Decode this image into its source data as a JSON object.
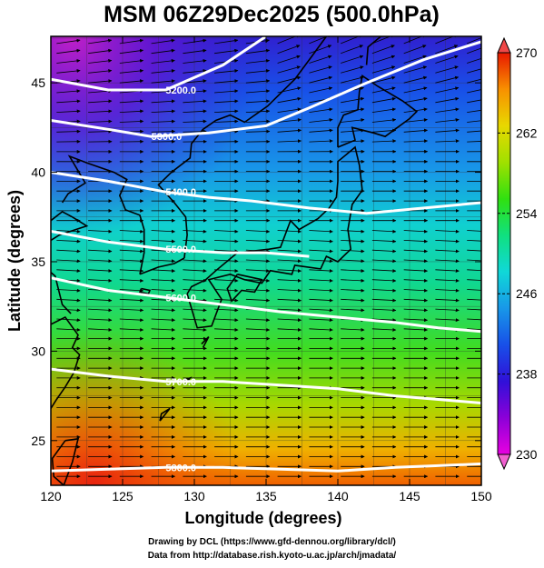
{
  "chart_data": {
    "type": "heatmap",
    "title": "MSM 06Z29Dec2025 (500.0hPa)",
    "xlabel": "Longitude (degrees)",
    "ylabel": "Latitude (degrees)",
    "xlim": [
      120,
      150
    ],
    "ylim": [
      22.5,
      47.6
    ],
    "x_ticks": [
      120,
      125,
      130,
      135,
      140,
      145,
      150
    ],
    "x_tick_labels": [
      "120",
      "125",
      "130",
      "135",
      "140",
      "145",
      "150"
    ],
    "y_ticks": [
      25,
      30,
      35,
      40,
      45
    ],
    "y_tick_labels": [
      "25",
      "30",
      "35",
      "40",
      "45"
    ],
    "grid": true,
    "colorbar": {
      "min": 230,
      "max": 270,
      "ticks": [
        230,
        238,
        246,
        254,
        262,
        270
      ],
      "tick_labels": [
        "230",
        "238",
        "246",
        "254",
        "262",
        "270"
      ],
      "colors": [
        "#e800e0",
        "#8c00d8",
        "#3010d8",
        "#1850e8",
        "#1898e8",
        "#10d8d8",
        "#10e080",
        "#30e010",
        "#a0e000",
        "#e8d800",
        "#f89000",
        "#e81800"
      ]
    },
    "field_colors": {
      "cold": "#c020c8",
      "mid": "#10d8c8",
      "warm": "#e82010"
    },
    "contours": [
      {
        "level": 5200,
        "label": "5200.0",
        "points": [
          [
            120,
            45.2
          ],
          [
            124,
            44.6
          ],
          [
            128,
            44.6
          ],
          [
            132,
            46.0
          ],
          [
            135,
            47.6
          ]
        ]
      },
      {
        "level": 5300,
        "label": "5300.0",
        "points": [
          [
            120,
            42.9
          ],
          [
            124,
            42.4
          ],
          [
            127,
            42.0
          ],
          [
            131,
            42.2
          ],
          [
            135,
            42.6
          ],
          [
            138,
            43.6
          ],
          [
            142,
            45.0
          ],
          [
            146,
            46.3
          ],
          [
            150,
            47.3
          ]
        ]
      },
      {
        "level": 5400,
        "label": "5400.0",
        "points": [
          [
            120,
            40.0
          ],
          [
            124,
            39.5
          ],
          [
            128,
            38.9
          ],
          [
            131,
            38.6
          ],
          [
            134,
            38.4
          ],
          [
            138,
            38.0
          ],
          [
            142,
            37.7
          ],
          [
            146,
            38.0
          ],
          [
            150,
            38.3
          ]
        ]
      },
      {
        "level": 5500,
        "label": "5500.0",
        "points": [
          [
            120,
            36.7
          ],
          [
            124,
            36.1
          ],
          [
            128,
            35.7
          ],
          [
            132,
            35.5
          ],
          [
            135,
            35.5
          ],
          [
            138,
            35.3
          ]
        ]
      },
      {
        "level": 5600,
        "label": "5600.0",
        "points": [
          [
            120,
            34.1
          ],
          [
            124,
            33.4
          ],
          [
            128,
            33.0
          ],
          [
            132,
            32.6
          ],
          [
            136,
            32.2
          ],
          [
            140,
            31.9
          ],
          [
            144,
            31.6
          ],
          [
            147,
            31.3
          ],
          [
            150,
            31.1
          ]
        ]
      },
      {
        "level": 5700,
        "label": "5700.0",
        "points": [
          [
            120,
            29.0
          ],
          [
            124,
            28.6
          ],
          [
            128,
            28.3
          ],
          [
            132,
            28.3
          ],
          [
            136,
            28.1
          ],
          [
            140,
            27.9
          ],
          [
            144,
            27.5
          ],
          [
            147,
            27.3
          ],
          [
            150,
            27.1
          ]
        ]
      },
      {
        "level": 5800,
        "label": "5800.0",
        "points": [
          [
            120,
            23.3
          ],
          [
            124,
            23.4
          ],
          [
            128,
            23.5
          ],
          [
            132,
            23.5
          ],
          [
            136,
            23.4
          ],
          [
            140,
            23.3
          ],
          [
            144,
            23.5
          ],
          [
            147,
            23.6
          ],
          [
            150,
            23.7
          ]
        ]
      }
    ]
  },
  "credits": {
    "line1": "Drawing by DCL (https://www.gfd-dennou.org/library/dcl/)",
    "line2": "Data from http://database.rish.kyoto-u.ac.jp/arch/jmadata/"
  }
}
